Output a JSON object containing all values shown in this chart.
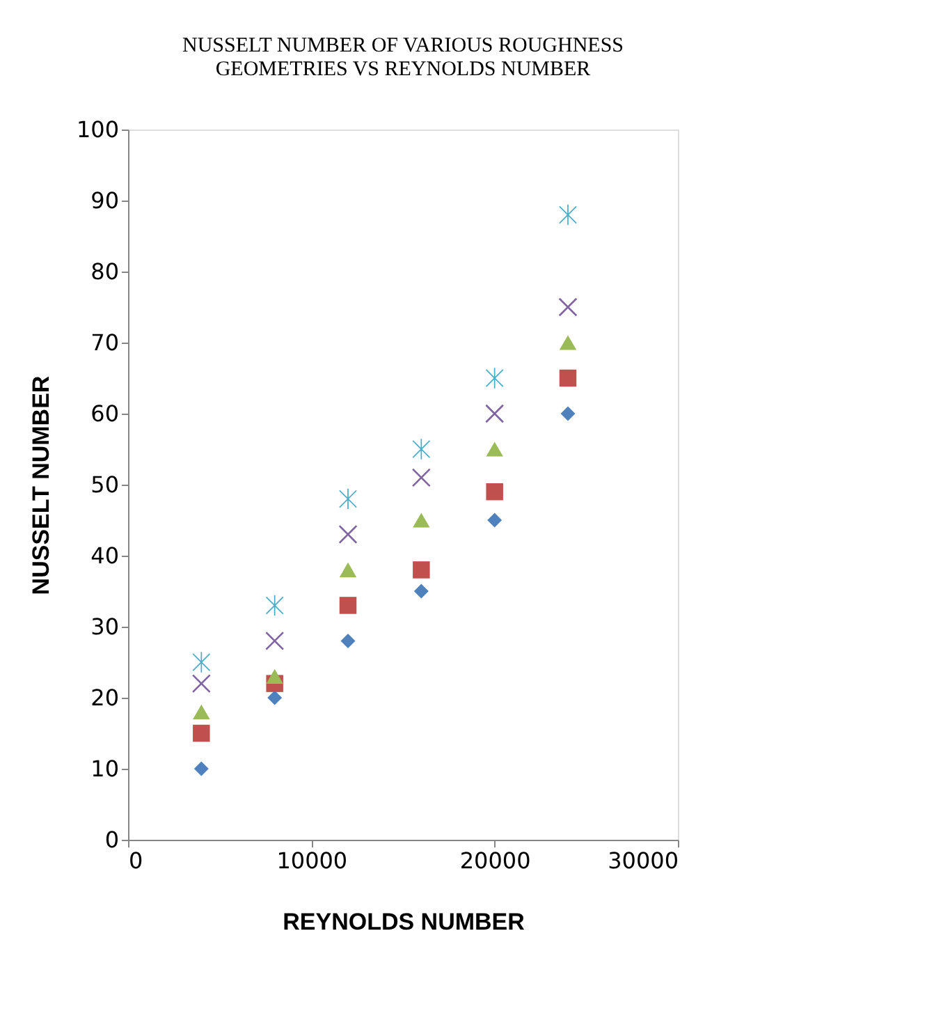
{
  "chart_data": {
    "type": "scatter",
    "title": "NUSSELT NUMBER OF VARIOUS ROUGHNESS GEOMETRIES VS  REYNOLDS NUMBER",
    "xlabel": "REYNOLDS NUMBER",
    "ylabel": "NUSSELT NUMBER",
    "x": [
      4000,
      8000,
      12000,
      16000,
      20000,
      24000
    ],
    "series": [
      {
        "color": "#4f81bd",
        "marker": "diamond",
        "values": [
          10,
          20,
          28,
          35,
          45,
          60
        ]
      },
      {
        "color": "#c0504d",
        "marker": "square",
        "values": [
          15,
          22,
          33,
          38,
          49,
          65
        ]
      },
      {
        "color": "#9bbb59",
        "marker": "triangle",
        "values": [
          18,
          23,
          38,
          45,
          55,
          70
        ]
      },
      {
        "color": "#8064a2",
        "marker": "cross",
        "values": [
          22,
          28,
          43,
          51,
          60,
          75
        ]
      },
      {
        "color": "#4bacc6",
        "values": [
          25,
          33,
          48,
          55,
          65,
          88
        ]
      }
    ],
    "xlim": [
      0,
      30000
    ],
    "xticks": [
      0,
      {
        "value": 10000,
        "label": "10000"
      },
      {
        "value": 20000,
        "label": "20000"
      },
      {
        "value": 30000,
        "label": "30000"
      }
    ],
    "ylim": [
      0,
      100
    ],
    "yticks": [
      0,
      10,
      20,
      30,
      40,
      50,
      60,
      70,
      80,
      90,
      100
    ],
    "grid": false,
    "legend": false
  }
}
